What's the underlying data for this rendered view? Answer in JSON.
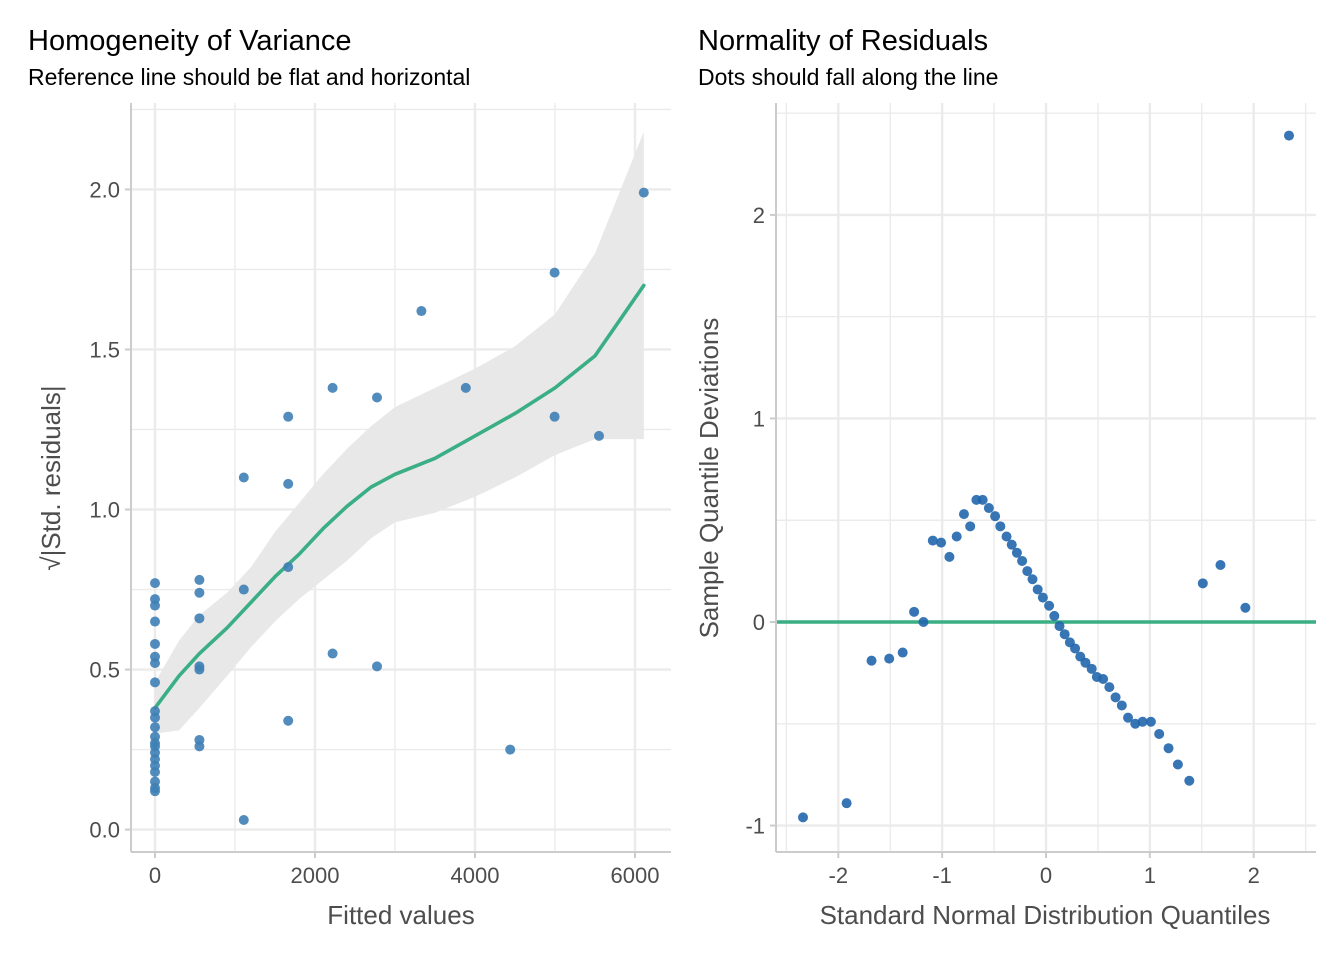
{
  "colors": {
    "point_left": "#3e7fb5",
    "point_right": "#2166ac",
    "smooth_line": "#3aae84",
    "ref_line": "#3aae84",
    "ci_band": "#e8e8e8",
    "grid": "#ebebeb",
    "axis": "#cccccc"
  },
  "chart_data": [
    {
      "type": "scatter",
      "title": "Homogeneity of Variance",
      "subtitle": "Reference line should be flat and horizontal",
      "xlabel": "Fitted values",
      "ylabel": "√|Std. residuals|",
      "xlim": [
        -300,
        6450
      ],
      "ylim": [
        -0.07,
        2.27
      ],
      "xticks": [
        0,
        2000,
        4000,
        6000
      ],
      "xtick_labels": [
        "0",
        "2000",
        "4000",
        "6000"
      ],
      "yticks": [
        0.0,
        0.5,
        1.0,
        1.5,
        2.0
      ],
      "ytick_labels": [
        "0.0",
        "0.5",
        "1.0",
        "1.5",
        "2.0"
      ],
      "grid": true,
      "points": [
        [
          0,
          0.77
        ],
        [
          0,
          0.72
        ],
        [
          0,
          0.7
        ],
        [
          0,
          0.65
        ],
        [
          0,
          0.58
        ],
        [
          0,
          0.54
        ],
        [
          0,
          0.52
        ],
        [
          0,
          0.46
        ],
        [
          0,
          0.37
        ],
        [
          0,
          0.35
        ],
        [
          0,
          0.32
        ],
        [
          0,
          0.29
        ],
        [
          0,
          0.27
        ],
        [
          0,
          0.26
        ],
        [
          0,
          0.24
        ],
        [
          0,
          0.22
        ],
        [
          0,
          0.2
        ],
        [
          0,
          0.18
        ],
        [
          0,
          0.15
        ],
        [
          0,
          0.13
        ],
        [
          0,
          0.12
        ],
        [
          555,
          0.78
        ],
        [
          555,
          0.74
        ],
        [
          555,
          0.66
        ],
        [
          555,
          0.51
        ],
        [
          555,
          0.5
        ],
        [
          555,
          0.28
        ],
        [
          555,
          0.26
        ],
        [
          1110,
          1.1
        ],
        [
          1110,
          0.75
        ],
        [
          1110,
          0.03
        ],
        [
          1665,
          1.29
        ],
        [
          1665,
          1.08
        ],
        [
          1665,
          0.82
        ],
        [
          1665,
          0.34
        ],
        [
          2220,
          1.38
        ],
        [
          2220,
          0.55
        ],
        [
          2775,
          1.35
        ],
        [
          2775,
          0.51
        ],
        [
          3330,
          1.62
        ],
        [
          3885,
          1.38
        ],
        [
          4440,
          0.25
        ],
        [
          4995,
          1.74
        ],
        [
          4995,
          1.29
        ],
        [
          5550,
          1.23
        ],
        [
          6110,
          1.99
        ]
      ],
      "smooth_line": [
        [
          0,
          0.38
        ],
        [
          300,
          0.48
        ],
        [
          555,
          0.55
        ],
        [
          900,
          0.63
        ],
        [
          1200,
          0.71
        ],
        [
          1500,
          0.79
        ],
        [
          1800,
          0.86
        ],
        [
          2100,
          0.94
        ],
        [
          2400,
          1.01
        ],
        [
          2700,
          1.07
        ],
        [
          3000,
          1.11
        ],
        [
          3500,
          1.16
        ],
        [
          4000,
          1.23
        ],
        [
          4500,
          1.3
        ],
        [
          5000,
          1.38
        ],
        [
          5500,
          1.48
        ],
        [
          6110,
          1.7
        ]
      ],
      "ci_upper": [
        [
          0,
          0.46
        ],
        [
          300,
          0.59
        ],
        [
          555,
          0.67
        ],
        [
          900,
          0.74
        ],
        [
          1200,
          0.82
        ],
        [
          1500,
          0.93
        ],
        [
          1800,
          1.02
        ],
        [
          2100,
          1.11
        ],
        [
          2400,
          1.19
        ],
        [
          2700,
          1.26
        ],
        [
          3000,
          1.32
        ],
        [
          3500,
          1.38
        ],
        [
          4000,
          1.44
        ],
        [
          4500,
          1.51
        ],
        [
          5000,
          1.61
        ],
        [
          5500,
          1.8
        ],
        [
          6110,
          2.18
        ]
      ],
      "ci_lower": [
        [
          0,
          0.3
        ],
        [
          300,
          0.31
        ],
        [
          555,
          0.38
        ],
        [
          900,
          0.48
        ],
        [
          1200,
          0.57
        ],
        [
          1500,
          0.65
        ],
        [
          1800,
          0.72
        ],
        [
          2100,
          0.78
        ],
        [
          2400,
          0.84
        ],
        [
          2700,
          0.91
        ],
        [
          3000,
          0.96
        ],
        [
          3500,
          0.99
        ],
        [
          4000,
          1.04
        ],
        [
          4500,
          1.1
        ],
        [
          5000,
          1.17
        ],
        [
          5500,
          1.22
        ],
        [
          6110,
          1.22
        ]
      ]
    },
    {
      "type": "scatter",
      "title": "Normality of Residuals",
      "subtitle": "Dots should fall along the line",
      "xlabel": "Standard Normal Distribution Quantiles",
      "ylabel": "Sample Quantile Deviations",
      "xlim": [
        -2.6,
        2.6
      ],
      "ylim": [
        -1.13,
        2.55
      ],
      "xticks": [
        -2,
        -1,
        0,
        1,
        2
      ],
      "xtick_labels": [
        "-2",
        "-1",
        "0",
        "1",
        "2"
      ],
      "yticks": [
        -1,
        0,
        1,
        2
      ],
      "ytick_labels": [
        "-1",
        "0",
        "1",
        "2"
      ],
      "grid": true,
      "ref_line_y": 0,
      "points": [
        [
          -2.34,
          -0.96
        ],
        [
          -1.92,
          -0.89
        ],
        [
          -1.68,
          -0.19
        ],
        [
          -1.51,
          -0.18
        ],
        [
          -1.38,
          -0.15
        ],
        [
          -1.27,
          0.05
        ],
        [
          -1.18,
          0.0
        ],
        [
          -1.09,
          0.4
        ],
        [
          -1.01,
          0.39
        ],
        [
          -0.93,
          0.32
        ],
        [
          -0.86,
          0.42
        ],
        [
          -0.79,
          0.53
        ],
        [
          -0.73,
          0.47
        ],
        [
          -0.67,
          0.6
        ],
        [
          -0.61,
          0.6
        ],
        [
          -0.55,
          0.56
        ],
        [
          -0.49,
          0.52
        ],
        [
          -0.44,
          0.47
        ],
        [
          -0.38,
          0.42
        ],
        [
          -0.33,
          0.38
        ],
        [
          -0.28,
          0.34
        ],
        [
          -0.23,
          0.3
        ],
        [
          -0.18,
          0.25
        ],
        [
          -0.13,
          0.21
        ],
        [
          -0.08,
          0.16
        ],
        [
          -0.03,
          0.12
        ],
        [
          0.03,
          0.08
        ],
        [
          0.08,
          0.03
        ],
        [
          0.13,
          -0.02
        ],
        [
          0.18,
          -0.06
        ],
        [
          0.23,
          -0.1
        ],
        [
          0.28,
          -0.13
        ],
        [
          0.33,
          -0.17
        ],
        [
          0.38,
          -0.2
        ],
        [
          0.44,
          -0.23
        ],
        [
          0.49,
          -0.27
        ],
        [
          0.55,
          -0.28
        ],
        [
          0.61,
          -0.32
        ],
        [
          0.67,
          -0.37
        ],
        [
          0.73,
          -0.41
        ],
        [
          0.79,
          -0.47
        ],
        [
          0.86,
          -0.5
        ],
        [
          0.93,
          -0.49
        ],
        [
          1.01,
          -0.49
        ],
        [
          1.09,
          -0.55
        ],
        [
          1.18,
          -0.62
        ],
        [
          1.27,
          -0.7
        ],
        [
          1.38,
          -0.78
        ],
        [
          1.51,
          0.19
        ],
        [
          1.68,
          0.28
        ],
        [
          1.92,
          0.07
        ],
        [
          2.34,
          2.39
        ]
      ]
    }
  ]
}
